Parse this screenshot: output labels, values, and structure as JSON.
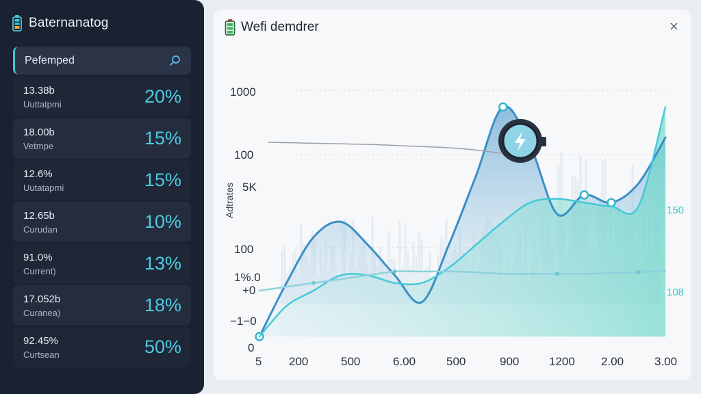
{
  "sidebar": {
    "title": "Baternanatog",
    "search": {
      "value": "Pefemped"
    },
    "items": [
      {
        "value": "13.38b",
        "label": "Uuttatpmi",
        "percent": "20%"
      },
      {
        "value": "18.00b",
        "label": "Vetmpe",
        "percent": "15%"
      },
      {
        "value": "12.6%",
        "label": "Uutatapmi",
        "percent": "15%"
      },
      {
        "value": "12.65b",
        "label": "Curudan",
        "percent": "10%"
      },
      {
        "value": "91.0%",
        "label": "Current)",
        "percent": "13%"
      },
      {
        "value": "17.052b",
        "label": "Curanea)",
        "percent": "18%"
      },
      {
        "value": "92.45%",
        "label": "Curtsean",
        "percent": "50%"
      }
    ]
  },
  "panel": {
    "title": "Wefi demdrer",
    "close_glyph": "×"
  },
  "chart_data": {
    "type": "area",
    "ylabel": "Adtrates",
    "y_tick_labels": [
      "1000",
      "100",
      "5K",
      "100",
      "1%.0",
      "+0",
      "−1−0",
      "0"
    ],
    "x_tick_labels": [
      "5",
      "200",
      "500",
      "6.00",
      "500",
      "900",
      "1200",
      "2.00",
      "3.00"
    ],
    "right_tick_labels": [
      "150",
      "108"
    ],
    "series": [
      {
        "color": "#3a8fc4",
        "values": [
          0,
          70,
          130,
          150,
          120,
          80,
          45,
          120,
          210,
          300,
          250,
          160,
          185,
          175,
          200,
          260
        ]
      },
      {
        "color": "#45c9d8",
        "values": [
          0,
          40,
          60,
          80,
          80,
          70,
          70,
          90,
          120,
          150,
          175,
          180,
          175,
          170,
          170,
          300
        ]
      },
      {
        "color": "#8fd1dd",
        "values": [
          60,
          65,
          70,
          75,
          80,
          85,
          85,
          85,
          84,
          82,
          82,
          82,
          82,
          83,
          84,
          86
        ]
      },
      {
        "color": "#9aa0a8",
        "values": [
          300,
          299,
          298,
          297,
          296,
          294,
          292,
          290,
          286,
          280
        ]
      }
    ],
    "grid": "dotted horizontal",
    "marker": "lightning-icon"
  },
  "colors": {
    "accent": "#3ec7d6",
    "sidebar_bg": "#1a2130",
    "panel_bg": "#f7f8fa"
  }
}
